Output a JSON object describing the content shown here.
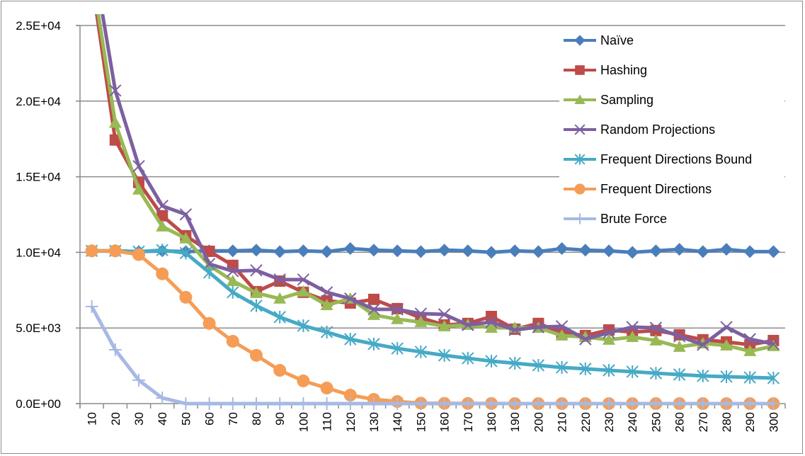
{
  "chart_data": {
    "type": "line",
    "title": "",
    "xlabel": "",
    "ylabel": "",
    "ylim": [
      0,
      25000
    ],
    "yticks": [
      0,
      5000,
      10000,
      15000,
      20000,
      25000
    ],
    "ytick_labels": [
      "0.0E+00",
      "5.0E+03",
      "1.0E+04",
      "1.5E+04",
      "2.0E+04",
      "2.5E+04"
    ],
    "grid": true,
    "legend_position": "top-right",
    "categories": [
      "10",
      "20",
      "30",
      "40",
      "50",
      "60",
      "70",
      "80",
      "90",
      "100",
      "110",
      "120",
      "130",
      "140",
      "150",
      "160",
      "170",
      "180",
      "190",
      "200",
      "210",
      "220",
      "230",
      "240",
      "250",
      "260",
      "270",
      "280",
      "290",
      "300"
    ],
    "series": [
      {
        "name": "Naïve",
        "color": "#4a7ebb",
        "marker": "diamond",
        "values": [
          10100,
          10100,
          10050,
          10100,
          10050,
          10100,
          10100,
          10150,
          10050,
          10100,
          10050,
          10250,
          10150,
          10100,
          10050,
          10150,
          10100,
          10000,
          10100,
          10050,
          10250,
          10150,
          10100,
          10000,
          10100,
          10200,
          10050,
          10200,
          10050,
          10050
        ]
      },
      {
        "name": "Hashing",
        "color": "#be4b48",
        "marker": "square",
        "values": [
          28000,
          17430,
          14620,
          12420,
          11100,
          10070,
          9140,
          7400,
          8100,
          7360,
          6800,
          6650,
          6890,
          6280,
          5670,
          5200,
          5300,
          5760,
          4920,
          5300,
          4690,
          4500,
          4870,
          4730,
          4830,
          4550,
          4220,
          4080,
          3890,
          4170
        ]
      },
      {
        "name": "Sampling",
        "color": "#98b954",
        "marker": "triangle",
        "values": [
          28500,
          18560,
          14150,
          11710,
          10920,
          9140,
          8100,
          7310,
          6940,
          7400,
          6510,
          6940,
          5860,
          5580,
          5390,
          5110,
          5200,
          5010,
          5010,
          5010,
          4500,
          4400,
          4220,
          4400,
          4170,
          3750,
          3980,
          3840,
          3470,
          3800
        ]
      },
      {
        "name": "Random Projections",
        "color": "#7d60a0",
        "marker": "x",
        "values": [
          30000,
          20700,
          15700,
          13070,
          12510,
          9230,
          8760,
          8810,
          8200,
          8200,
          7360,
          6940,
          6230,
          6230,
          5950,
          5900,
          5200,
          5390,
          4870,
          5060,
          5110,
          4260,
          4690,
          5060,
          5010,
          4450,
          3890,
          5060,
          4260,
          3940
        ]
      },
      {
        "name": "Frequent Directions Bound",
        "color": "#46aac5",
        "marker": "asterisk",
        "values": [
          10100,
          10100,
          10050,
          10150,
          9950,
          8670,
          7360,
          6470,
          5720,
          5150,
          4730,
          4260,
          3940,
          3650,
          3420,
          3190,
          3000,
          2810,
          2670,
          2530,
          2390,
          2300,
          2200,
          2110,
          2010,
          1920,
          1830,
          1780,
          1730,
          1690
        ]
      },
      {
        "name": "Frequent Directions",
        "color": "#f59d56",
        "marker": "circle",
        "values": [
          10100,
          10100,
          9850,
          8580,
          7030,
          5300,
          4120,
          3190,
          2200,
          1500,
          1030,
          560,
          280,
          140,
          30,
          20,
          10,
          10,
          0,
          0,
          0,
          0,
          0,
          0,
          0,
          0,
          0,
          0,
          0,
          0
        ]
      },
      {
        "name": "Brute Force",
        "color": "#a7b9e3",
        "marker": "plus",
        "values": [
          6420,
          3560,
          1550,
          370,
          0,
          0,
          0,
          0,
          0,
          0,
          0,
          0,
          0,
          0,
          0,
          0,
          0,
          0,
          0,
          0,
          0,
          0,
          0,
          0,
          0,
          0,
          0,
          0,
          0,
          0
        ]
      }
    ]
  }
}
